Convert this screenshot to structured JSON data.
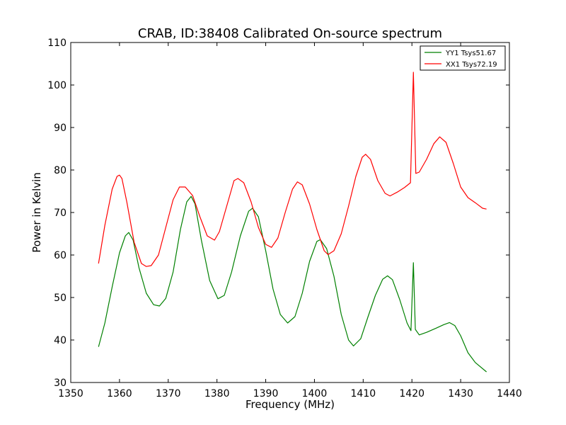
{
  "chart_data": {
    "type": "line",
    "title": "CRAB, ID:38408 Calibrated On-source spectrum",
    "xlabel": "Frequency (MHz)",
    "ylabel": "Power in Kelvin",
    "xlim": [
      1350,
      1440
    ],
    "ylim": [
      30,
      110
    ],
    "xticks": [
      1350,
      1360,
      1370,
      1380,
      1390,
      1400,
      1410,
      1420,
      1430,
      1440
    ],
    "yticks": [
      30,
      40,
      50,
      60,
      70,
      80,
      90,
      100,
      110
    ],
    "grid": false,
    "legend_position": "top-right",
    "series": [
      {
        "name": "YY1 Tsys51.67",
        "color": "#008000",
        "x": [
          1355.7,
          1357,
          1358.5,
          1360,
          1361.2,
          1361.9,
          1362.8,
          1364,
          1365.5,
          1367,
          1368.2,
          1369.5,
          1371,
          1372.5,
          1373.8,
          1374.7,
          1375.5,
          1376.8,
          1378.5,
          1380.2,
          1381.5,
          1383,
          1384.8,
          1386.5,
          1387.3,
          1388.5,
          1390,
          1391.5,
          1393,
          1394.5,
          1396,
          1397.5,
          1399,
          1400.5,
          1401.2,
          1402.5,
          1404,
          1405.5,
          1407,
          1408,
          1409.5,
          1411,
          1412.5,
          1414,
          1415,
          1416,
          1417.5,
          1419,
          1419.8,
          1420.3,
          1420.7,
          1421.5,
          1423,
          1425,
          1426.5,
          1427.7,
          1428.8,
          1430,
          1431.5,
          1433,
          1435.3
        ],
        "y": [
          38.4,
          44,
          52.5,
          60.5,
          64.5,
          65.3,
          63.5,
          57,
          51,
          48.3,
          48,
          49.8,
          56,
          66,
          72.5,
          73.8,
          72,
          63.5,
          54,
          49.7,
          50.5,
          56,
          64.5,
          70.3,
          71,
          69,
          61,
          52,
          46,
          44,
          45.5,
          51,
          58.5,
          63.2,
          63.6,
          61.5,
          55,
          46,
          40,
          38.6,
          40.3,
          45.5,
          50.5,
          54.3,
          55.1,
          54.2,
          49.5,
          44,
          42.2,
          58.2,
          42.5,
          41.2,
          41.8,
          42.8,
          43.6,
          44.1,
          43.4,
          41,
          37,
          34.7,
          32.5
        ]
      },
      {
        "name": "XX1 Tsys72.19",
        "color": "#ff0000",
        "x": [
          1355.7,
          1357,
          1358.5,
          1359.5,
          1360,
          1360.5,
          1361.5,
          1363,
          1364.5,
          1365.5,
          1366.5,
          1368,
          1369.5,
          1371,
          1372.3,
          1373.5,
          1375,
          1376.5,
          1378,
          1379.5,
          1380.5,
          1382,
          1383.5,
          1384.3,
          1385.5,
          1387,
          1388.5,
          1390,
          1391.2,
          1392.5,
          1394,
          1395.5,
          1396.5,
          1397.5,
          1399,
          1400.5,
          1402,
          1402.8,
          1404,
          1405.5,
          1407,
          1408.5,
          1409.8,
          1410.5,
          1411.5,
          1413,
          1414.5,
          1415.5,
          1417,
          1418.5,
          1419.7,
          1420.3,
          1420.8,
          1421.5,
          1423,
          1424.5,
          1425.7,
          1427,
          1428.5,
          1430,
          1431.5,
          1433,
          1434.5,
          1435.3
        ],
        "y": [
          58,
          67,
          75.5,
          78.5,
          78.8,
          78,
          72.5,
          63,
          58,
          57.3,
          57.5,
          60,
          66.5,
          73,
          76,
          76,
          74,
          69,
          64.5,
          63.5,
          65.5,
          71.5,
          77.5,
          78,
          77,
          72.5,
          66.5,
          62.5,
          61.8,
          64,
          70,
          75.5,
          77.2,
          76.5,
          72,
          66,
          61,
          60.1,
          61,
          65,
          71.5,
          78.5,
          83,
          83.7,
          82.5,
          77.5,
          74.5,
          73.9,
          74.8,
          75.9,
          77,
          103,
          79.2,
          79.5,
          82.5,
          86.2,
          87.8,
          86.5,
          81.5,
          76,
          73.5,
          72.3,
          71,
          70.8
        ]
      }
    ]
  }
}
